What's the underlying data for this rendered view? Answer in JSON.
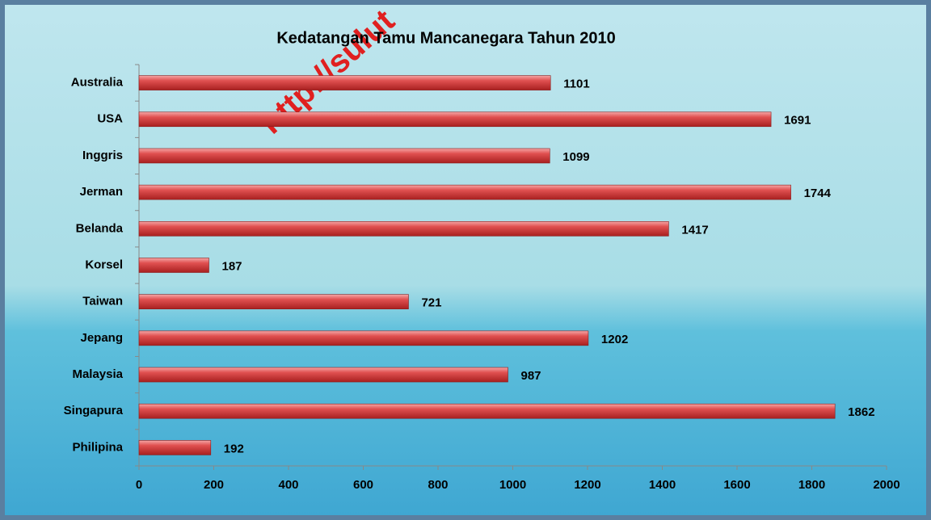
{
  "chart_data": {
    "type": "hbar",
    "title": "Kedatangan Tamu Mancanegara Tahun 2010",
    "watermark": "http://sulut",
    "categories": [
      "Australia",
      "USA",
      "Inggris",
      "Jerman",
      "Belanda",
      "Korsel",
      "Taiwan",
      "Jepang",
      "Malaysia",
      "Singapura",
      "Philipina"
    ],
    "values": [
      1101,
      1691,
      1099,
      1744,
      1417,
      187,
      721,
      1202,
      987,
      1862,
      192
    ],
    "color": "#d94a4a",
    "xlim": [
      0,
      2000
    ],
    "xticks": [
      0,
      200,
      400,
      600,
      800,
      1000,
      1200,
      1400,
      1600,
      1800,
      2000
    ]
  }
}
